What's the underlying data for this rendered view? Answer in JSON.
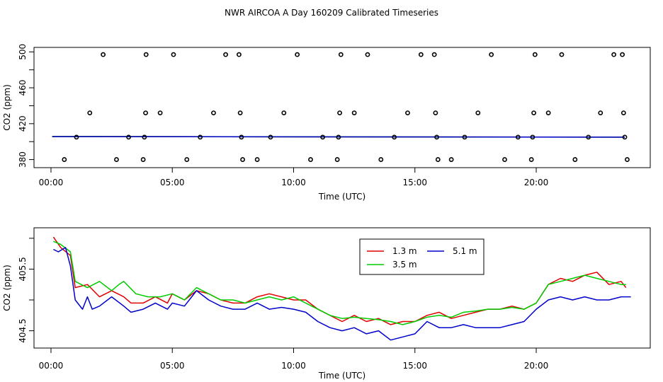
{
  "title": "NWR AIRCOA A  Day 160209  Calibrated Timeseries",
  "chart_data": [
    {
      "type": "scatter",
      "xlabel": "Time (UTC)",
      "ylabel": "CO2 (ppm)",
      "xlim": [
        -0.7,
        24.7
      ],
      "ylim": [
        371,
        505
      ],
      "x_ticks": [
        0,
        5,
        10,
        15,
        20
      ],
      "x_tick_labels": [
        "00:00",
        "05:00",
        "10:00",
        "15:00",
        "20:00"
      ],
      "y_ticks": [
        380,
        420,
        460,
        500
      ],
      "y_tick_labels": [
        "380",
        "420",
        "460",
        "500"
      ],
      "y_minor_ticks": [
        400,
        440,
        480
      ],
      "points": [
        [
          0.55,
          380
        ],
        [
          1.05,
          405
        ],
        [
          1.6,
          432
        ],
        [
          2.15,
          497
        ],
        [
          2.7,
          380
        ],
        [
          3.2,
          405
        ],
        [
          3.8,
          380
        ],
        [
          3.85,
          405
        ],
        [
          3.9,
          432
        ],
        [
          3.92,
          497
        ],
        [
          4.5,
          432
        ],
        [
          5.05,
          497
        ],
        [
          5.6,
          380
        ],
        [
          6.15,
          405
        ],
        [
          6.7,
          432
        ],
        [
          7.2,
          497
        ],
        [
          7.75,
          497
        ],
        [
          7.8,
          432
        ],
        [
          7.85,
          405
        ],
        [
          7.9,
          380
        ],
        [
          8.5,
          380
        ],
        [
          9.05,
          405
        ],
        [
          9.6,
          432
        ],
        [
          10.15,
          497
        ],
        [
          10.7,
          380
        ],
        [
          11.2,
          405
        ],
        [
          11.8,
          380
        ],
        [
          11.85,
          405
        ],
        [
          11.9,
          432
        ],
        [
          11.95,
          497
        ],
        [
          12.5,
          432
        ],
        [
          13.05,
          497
        ],
        [
          13.6,
          380
        ],
        [
          14.15,
          405
        ],
        [
          14.7,
          432
        ],
        [
          15.25,
          497
        ],
        [
          15.8,
          497
        ],
        [
          15.85,
          432
        ],
        [
          15.9,
          405
        ],
        [
          15.95,
          380
        ],
        [
          16.5,
          380
        ],
        [
          17.05,
          405
        ],
        [
          17.6,
          432
        ],
        [
          18.15,
          497
        ],
        [
          18.7,
          380
        ],
        [
          19.25,
          405
        ],
        [
          19.8,
          380
        ],
        [
          19.85,
          405
        ],
        [
          19.9,
          432
        ],
        [
          19.95,
          497
        ],
        [
          20.5,
          432
        ],
        [
          21.05,
          497
        ],
        [
          21.6,
          380
        ],
        [
          22.15,
          405
        ],
        [
          22.65,
          432
        ],
        [
          23.2,
          497
        ],
        [
          23.55,
          497
        ],
        [
          23.6,
          432
        ],
        [
          23.65,
          405
        ],
        [
          23.75,
          380
        ]
      ],
      "series": [
        {
          "name": "1.3 m",
          "color": "#e00000",
          "values": [
            [
              0.05,
              405.7
            ],
            [
              23.65,
              405.0
            ]
          ]
        },
        {
          "name": "3.5 m",
          "color": "#00cc00",
          "values": [
            [
              0.05,
              405.7
            ],
            [
              23.65,
              405.0
            ]
          ]
        },
        {
          "name": "5.1 m",
          "color": "#0000cc",
          "values": [
            [
              0.05,
              405.6
            ],
            [
              23.65,
              405.0
            ]
          ]
        }
      ]
    },
    {
      "type": "line",
      "xlabel": "Time (UTC)",
      "ylabel": "CO2 (ppm)",
      "xlim": [
        -0.7,
        24.7
      ],
      "ylim": [
        404.22,
        406.17
      ],
      "x_ticks": [
        0,
        5,
        10,
        15,
        20
      ],
      "x_tick_labels": [
        "00:00",
        "05:00",
        "10:00",
        "15:00",
        "20:00"
      ],
      "y_ticks": [
        404.5,
        405.5
      ],
      "y_tick_labels": [
        "404.5",
        "405.5"
      ],
      "y_minor_ticks": [
        404.0,
        405.0,
        406.0
      ],
      "legend": "top-center",
      "series": [
        {
          "name": "1.3 m",
          "color": "#e00000",
          "points": [
            [
              0.1,
              406.02
            ],
            [
              0.4,
              405.85
            ],
            [
              0.8,
              405.72
            ],
            [
              1.0,
              405.2
            ],
            [
              1.5,
              405.25
            ],
            [
              2.0,
              405.05
            ],
            [
              2.5,
              405.15
            ],
            [
              3.0,
              405.05
            ],
            [
              3.3,
              404.95
            ],
            [
              3.8,
              404.95
            ],
            [
              4.3,
              405.05
            ],
            [
              4.8,
              404.95
            ],
            [
              5.0,
              405.1
            ],
            [
              5.5,
              405.0
            ],
            [
              6.0,
              405.15
            ],
            [
              6.5,
              405.1
            ],
            [
              7.0,
              405.0
            ],
            [
              7.5,
              404.95
            ],
            [
              8.0,
              404.95
            ],
            [
              8.5,
              405.05
            ],
            [
              9.0,
              405.1
            ],
            [
              9.5,
              405.05
            ],
            [
              10.0,
              405.0
            ],
            [
              10.5,
              405.0
            ],
            [
              11.0,
              404.85
            ],
            [
              11.5,
              404.75
            ],
            [
              12.0,
              404.65
            ],
            [
              12.5,
              404.75
            ],
            [
              13.0,
              404.65
            ],
            [
              13.5,
              404.7
            ],
            [
              14.0,
              404.6
            ],
            [
              14.5,
              404.65
            ],
            [
              15.0,
              404.65
            ],
            [
              15.5,
              404.75
            ],
            [
              16.0,
              404.8
            ],
            [
              16.5,
              404.7
            ],
            [
              17.0,
              404.75
            ],
            [
              17.5,
              404.8
            ],
            [
              18.0,
              404.85
            ],
            [
              18.5,
              404.85
            ],
            [
              19.0,
              404.9
            ],
            [
              19.5,
              404.85
            ],
            [
              20.0,
              404.95
            ],
            [
              20.5,
              405.25
            ],
            [
              21.0,
              405.35
            ],
            [
              21.5,
              405.3
            ],
            [
              22.0,
              405.4
            ],
            [
              22.5,
              405.45
            ],
            [
              23.0,
              405.25
            ],
            [
              23.5,
              405.3
            ],
            [
              23.7,
              405.2
            ]
          ]
        },
        {
          "name": "3.5 m",
          "color": "#00cc00",
          "points": [
            [
              0.1,
              405.95
            ],
            [
              0.4,
              405.9
            ],
            [
              0.8,
              405.78
            ],
            [
              1.0,
              405.3
            ],
            [
              1.5,
              405.2
            ],
            [
              2.0,
              405.3
            ],
            [
              2.5,
              405.15
            ],
            [
              2.8,
              405.25
            ],
            [
              3.0,
              405.3
            ],
            [
              3.5,
              405.1
            ],
            [
              4.0,
              405.05
            ],
            [
              4.5,
              405.05
            ],
            [
              5.0,
              405.1
            ],
            [
              5.5,
              405.0
            ],
            [
              6.0,
              405.2
            ],
            [
              6.5,
              405.1
            ],
            [
              7.0,
              405.0
            ],
            [
              7.5,
              405.0
            ],
            [
              8.0,
              404.95
            ],
            [
              8.5,
              405.0
            ],
            [
              9.0,
              405.05
            ],
            [
              9.5,
              405.0
            ],
            [
              10.0,
              405.05
            ],
            [
              10.5,
              404.95
            ],
            [
              11.0,
              404.85
            ],
            [
              11.5,
              404.75
            ],
            [
              12.0,
              404.7
            ],
            [
              12.5,
              404.72
            ],
            [
              13.0,
              404.7
            ],
            [
              13.5,
              404.68
            ],
            [
              14.0,
              404.65
            ],
            [
              14.5,
              404.6
            ],
            [
              15.0,
              404.65
            ],
            [
              15.5,
              404.72
            ],
            [
              16.0,
              404.75
            ],
            [
              16.5,
              404.72
            ],
            [
              17.0,
              404.8
            ],
            [
              17.5,
              404.82
            ],
            [
              18.0,
              404.85
            ],
            [
              18.5,
              404.85
            ],
            [
              19.0,
              404.88
            ],
            [
              19.5,
              404.85
            ],
            [
              20.0,
              404.95
            ],
            [
              20.5,
              405.25
            ],
            [
              21.0,
              405.3
            ],
            [
              21.5,
              405.35
            ],
            [
              22.0,
              405.4
            ],
            [
              22.5,
              405.35
            ],
            [
              23.0,
              405.3
            ],
            [
              23.5,
              405.25
            ],
            [
              23.7,
              405.25
            ]
          ]
        },
        {
          "name": "5.1 m",
          "color": "#0000cc",
          "points": [
            [
              0.1,
              405.82
            ],
            [
              0.3,
              405.78
            ],
            [
              0.6,
              405.85
            ],
            [
              0.8,
              405.55
            ],
            [
              1.0,
              405.0
            ],
            [
              1.3,
              404.85
            ],
            [
              1.5,
              405.05
            ],
            [
              1.7,
              404.85
            ],
            [
              2.0,
              404.9
            ],
            [
              2.5,
              405.05
            ],
            [
              3.0,
              404.9
            ],
            [
              3.3,
              404.8
            ],
            [
              3.8,
              404.85
            ],
            [
              4.3,
              404.95
            ],
            [
              4.8,
              404.85
            ],
            [
              5.0,
              404.95
            ],
            [
              5.5,
              404.9
            ],
            [
              6.0,
              405.15
            ],
            [
              6.5,
              405.0
            ],
            [
              7.0,
              404.9
            ],
            [
              7.5,
              404.85
            ],
            [
              8.0,
              404.85
            ],
            [
              8.5,
              404.95
            ],
            [
              9.0,
              404.85
            ],
            [
              9.5,
              404.88
            ],
            [
              10.0,
              404.85
            ],
            [
              10.5,
              404.8
            ],
            [
              11.0,
              404.65
            ],
            [
              11.5,
              404.55
            ],
            [
              12.0,
              404.5
            ],
            [
              12.5,
              404.55
            ],
            [
              13.0,
              404.45
            ],
            [
              13.5,
              404.5
            ],
            [
              14.0,
              404.35
            ],
            [
              14.5,
              404.4
            ],
            [
              15.0,
              404.45
            ],
            [
              15.5,
              404.65
            ],
            [
              16.0,
              404.55
            ],
            [
              16.5,
              404.55
            ],
            [
              17.0,
              404.6
            ],
            [
              17.5,
              404.55
            ],
            [
              18.0,
              404.55
            ],
            [
              18.5,
              404.55
            ],
            [
              19.0,
              404.6
            ],
            [
              19.5,
              404.65
            ],
            [
              20.0,
              404.85
            ],
            [
              20.5,
              405.0
            ],
            [
              21.0,
              405.05
            ],
            [
              21.5,
              405.0
            ],
            [
              22.0,
              405.05
            ],
            [
              22.5,
              405.0
            ],
            [
              23.0,
              405.0
            ],
            [
              23.5,
              405.05
            ],
            [
              23.9,
              405.05
            ]
          ]
        }
      ]
    }
  ]
}
